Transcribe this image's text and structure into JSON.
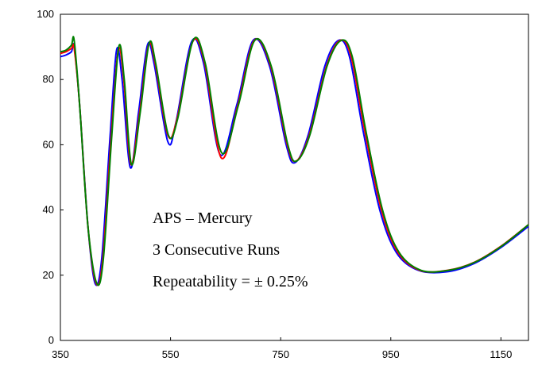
{
  "chart_data": {
    "type": "line",
    "title": "",
    "xlabel": "",
    "ylabel": "",
    "xlim": [
      350,
      1200
    ],
    "ylim": [
      0,
      100
    ],
    "x_ticks": [
      350,
      550,
      750,
      950,
      1150
    ],
    "y_ticks": [
      0,
      20,
      40,
      60,
      80,
      100
    ],
    "grid": false,
    "legend": "none",
    "annotations": [
      "APS – Mercury",
      "3 Consecutive Runs",
      "Repeatability = ± 0.25%"
    ],
    "series": [
      {
        "color": "#0000ff",
        "x": [
          350,
          360,
          370,
          375,
          385,
          400,
          413,
          425,
          440,
          452,
          462,
          477,
          492,
          508,
          520,
          545,
          560,
          588,
          610,
          640,
          670,
          700,
          730,
          760,
          776,
          800,
          830,
          855,
          875,
          900,
          930,
          960,
          1000,
          1050,
          1100,
          1150,
          1200
        ],
        "y": [
          87,
          87.5,
          88.5,
          90,
          72,
          35,
          17.5,
          25,
          62,
          89,
          80,
          53,
          70,
          90.5,
          85,
          61,
          67,
          91.5,
          85,
          57,
          72,
          92,
          84,
          60,
          54.5,
          63,
          84,
          92,
          87,
          64,
          40,
          27,
          21.5,
          21,
          23.5,
          28.5,
          35
        ]
      },
      {
        "color": "#ff0000",
        "x": [
          350,
          360,
          370,
          375,
          385,
          400,
          415,
          427,
          442,
          455,
          465,
          478,
          494,
          510,
          522,
          545,
          562,
          590,
          612,
          642,
          672,
          702,
          732,
          762,
          778,
          802,
          833,
          858,
          878,
          903,
          933,
          963,
          1003,
          1053,
          1102,
          1151,
          1200
        ],
        "y": [
          88,
          88.5,
          89.5,
          89.5,
          72,
          35,
          17.5,
          25,
          62,
          89,
          80,
          54,
          70,
          90.5,
          85,
          63,
          68,
          91.5,
          85,
          56,
          72,
          92,
          84,
          60,
          55,
          63,
          84,
          92,
          87,
          64,
          40,
          27,
          21.5,
          21.5,
          24,
          29,
          35.5
        ]
      },
      {
        "color": "#008000",
        "x": [
          350,
          360,
          370,
          375,
          385,
          400,
          416,
          428,
          443,
          456,
          466,
          479,
          495,
          511,
          523,
          546,
          563,
          591,
          613,
          643,
          673,
          703,
          733,
          763,
          779,
          803,
          834,
          860,
          880,
          905,
          935,
          965,
          1005,
          1055,
          1103,
          1152,
          1200
        ],
        "y": [
          88.5,
          89,
          90.5,
          92,
          72,
          35,
          17.5,
          25,
          62,
          90,
          80,
          54,
          70,
          91,
          85,
          63,
          68,
          92,
          85,
          57.5,
          72,
          92,
          84,
          60,
          55,
          63,
          84,
          92,
          87,
          64,
          40,
          27,
          21.5,
          21.5,
          24,
          29,
          35.5
        ]
      }
    ]
  }
}
